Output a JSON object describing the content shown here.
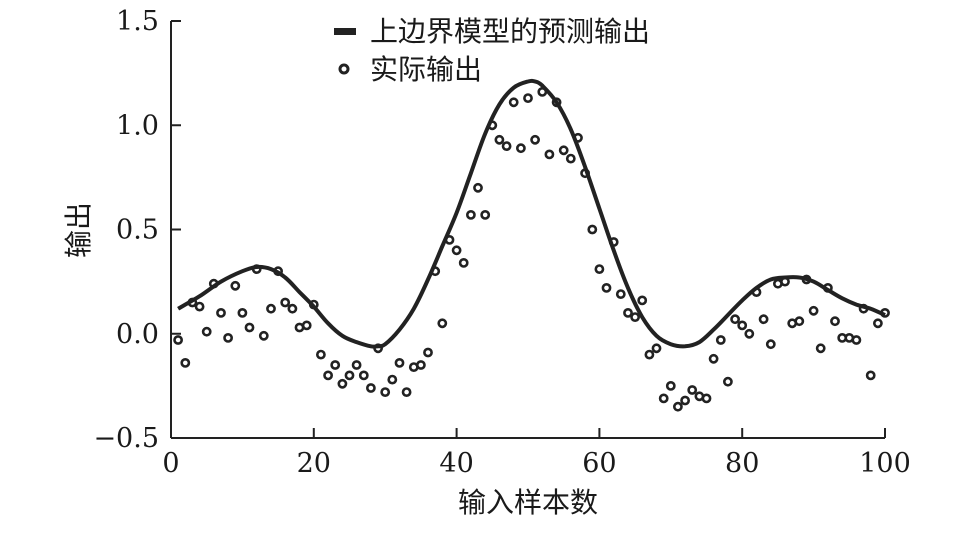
{
  "chart_data": {
    "type": "scatter",
    "xlabel": "输入样本数",
    "ylabel": "输出",
    "xlim": [
      0,
      100
    ],
    "ylim": [
      -0.5,
      1.5
    ],
    "xticks": [
      "0",
      "20",
      "40",
      "60",
      "80",
      "100"
    ],
    "yticks": [
      "−0.5",
      "0.0",
      "0.5",
      "1.0",
      "1.5"
    ],
    "xtick_values": [
      0,
      20,
      40,
      60,
      80,
      100
    ],
    "ytick_values": [
      -0.5,
      0.0,
      0.5,
      1.0,
      1.5
    ],
    "grid": false,
    "legend_position": "top-center",
    "legend": [
      {
        "label": "上边界模型的预测输出",
        "style": "line"
      },
      {
        "label": "实际输出",
        "style": "circle-marker"
      }
    ],
    "series": [
      {
        "name": "上边界模型的预测输出",
        "kind": "line",
        "color": "#222222",
        "x": [
          1,
          4,
          7,
          10,
          12,
          14,
          16,
          18,
          20,
          22,
          24,
          26,
          28,
          29,
          30,
          32,
          34,
          36,
          38,
          40,
          42,
          44,
          46,
          48,
          50,
          51,
          52,
          54,
          56,
          58,
          60,
          62,
          64,
          66,
          68,
          70,
          72,
          74,
          76,
          78,
          80,
          82,
          84,
          86,
          88,
          90,
          92,
          94,
          96,
          98,
          100
        ],
        "y": [
          0.12,
          0.18,
          0.25,
          0.3,
          0.32,
          0.31,
          0.27,
          0.2,
          0.13,
          0.05,
          -0.01,
          -0.04,
          -0.06,
          -0.06,
          -0.05,
          0.02,
          0.12,
          0.26,
          0.42,
          0.58,
          0.77,
          0.96,
          1.1,
          1.18,
          1.21,
          1.21,
          1.19,
          1.11,
          0.98,
          0.8,
          0.6,
          0.4,
          0.22,
          0.08,
          -0.01,
          -0.05,
          -0.06,
          -0.04,
          0.02,
          0.09,
          0.16,
          0.22,
          0.26,
          0.27,
          0.27,
          0.25,
          0.21,
          0.17,
          0.14,
          0.12,
          0.09
        ]
      },
      {
        "name": "实际输出",
        "kind": "scatter",
        "color": "#222222",
        "x": [
          1,
          2,
          3,
          4,
          5,
          6,
          7,
          8,
          9,
          10,
          11,
          12,
          13,
          14,
          15,
          16,
          17,
          18,
          19,
          20,
          21,
          22,
          23,
          24,
          25,
          26,
          27,
          28,
          29,
          30,
          31,
          32,
          33,
          34,
          35,
          36,
          37,
          38,
          39,
          40,
          41,
          42,
          43,
          44,
          45,
          46,
          47,
          48,
          49,
          50,
          51,
          52,
          53,
          54,
          55,
          56,
          57,
          58,
          59,
          60,
          61,
          62,
          63,
          64,
          65,
          66,
          67,
          68,
          69,
          70,
          71,
          72,
          73,
          74,
          75,
          76,
          77,
          78,
          79,
          80,
          81,
          82,
          83,
          84,
          85,
          86,
          87,
          88,
          89,
          90,
          91,
          92,
          93,
          94,
          95,
          96,
          97,
          98,
          99,
          100
        ],
        "y": [
          -0.03,
          -0.14,
          0.15,
          0.13,
          0.01,
          0.24,
          0.1,
          -0.02,
          0.23,
          0.1,
          0.03,
          0.31,
          -0.01,
          0.12,
          0.3,
          0.15,
          0.12,
          0.03,
          0.04,
          0.14,
          -0.1,
          -0.2,
          -0.15,
          -0.24,
          -0.2,
          -0.15,
          -0.2,
          -0.26,
          -0.07,
          -0.28,
          -0.22,
          -0.14,
          -0.28,
          -0.16,
          -0.15,
          -0.09,
          0.3,
          0.05,
          0.45,
          0.4,
          0.34,
          0.57,
          0.7,
          0.57,
          1.0,
          0.93,
          0.9,
          1.11,
          0.89,
          1.13,
          0.93,
          1.16,
          0.86,
          1.11,
          0.88,
          0.84,
          0.94,
          0.77,
          0.5,
          0.31,
          0.22,
          0.44,
          0.19,
          0.1,
          0.08,
          0.16,
          -0.1,
          -0.07,
          -0.31,
          -0.25,
          -0.35,
          -0.32,
          -0.27,
          -0.3,
          -0.31,
          -0.12,
          -0.03,
          -0.23,
          0.07,
          0.04,
          0.0,
          0.2,
          0.07,
          -0.05,
          0.24,
          0.25,
          0.05,
          0.06,
          0.26,
          0.11,
          -0.07,
          0.22,
          0.06,
          -0.02,
          -0.02,
          -0.03,
          0.12,
          -0.2,
          0.05,
          0.1
        ]
      }
    ]
  }
}
